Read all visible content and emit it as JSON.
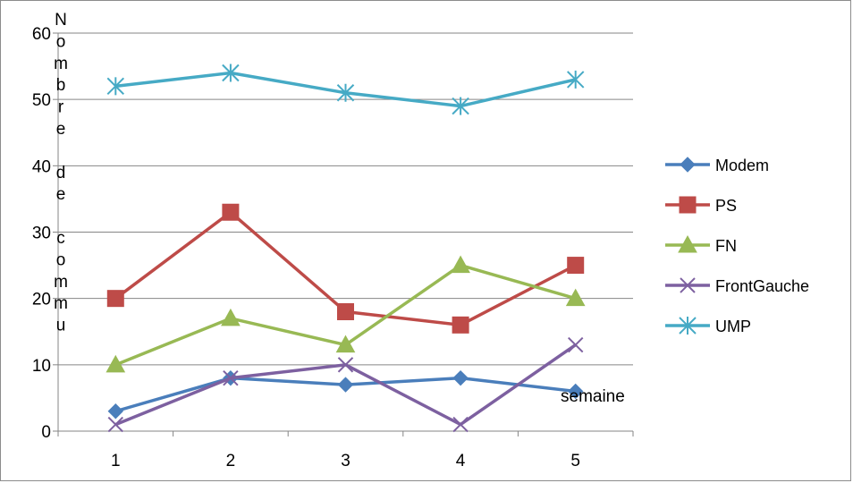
{
  "chart_data": {
    "type": "line",
    "ylabel": "Nombre de commu",
    "xlabel": "semaine",
    "categories": [
      "1",
      "2",
      "3",
      "4",
      "5"
    ],
    "ylim": [
      0,
      60
    ],
    "yticks": [
      "0",
      "10",
      "20",
      "30",
      "40",
      "50",
      "60"
    ],
    "grid": true,
    "legend_position": "right",
    "series": [
      {
        "name": "Modem",
        "values": [
          3,
          8,
          7,
          8,
          6
        ],
        "color": "#4a7ebb",
        "marker": "diamond"
      },
      {
        "name": "PS",
        "values": [
          20,
          33,
          18,
          16,
          25
        ],
        "color": "#be4b48",
        "marker": "square"
      },
      {
        "name": "FN",
        "values": [
          10,
          17,
          13,
          25,
          20
        ],
        "color": "#98b954",
        "marker": "triangle"
      },
      {
        "name": "FrontGauche",
        "values": [
          1,
          8,
          10,
          1,
          13
        ],
        "color": "#7d60a0",
        "marker": "x"
      },
      {
        "name": "UMP",
        "values": [
          52,
          54,
          51,
          49,
          53
        ],
        "color": "#46aac5",
        "marker": "star"
      }
    ]
  }
}
